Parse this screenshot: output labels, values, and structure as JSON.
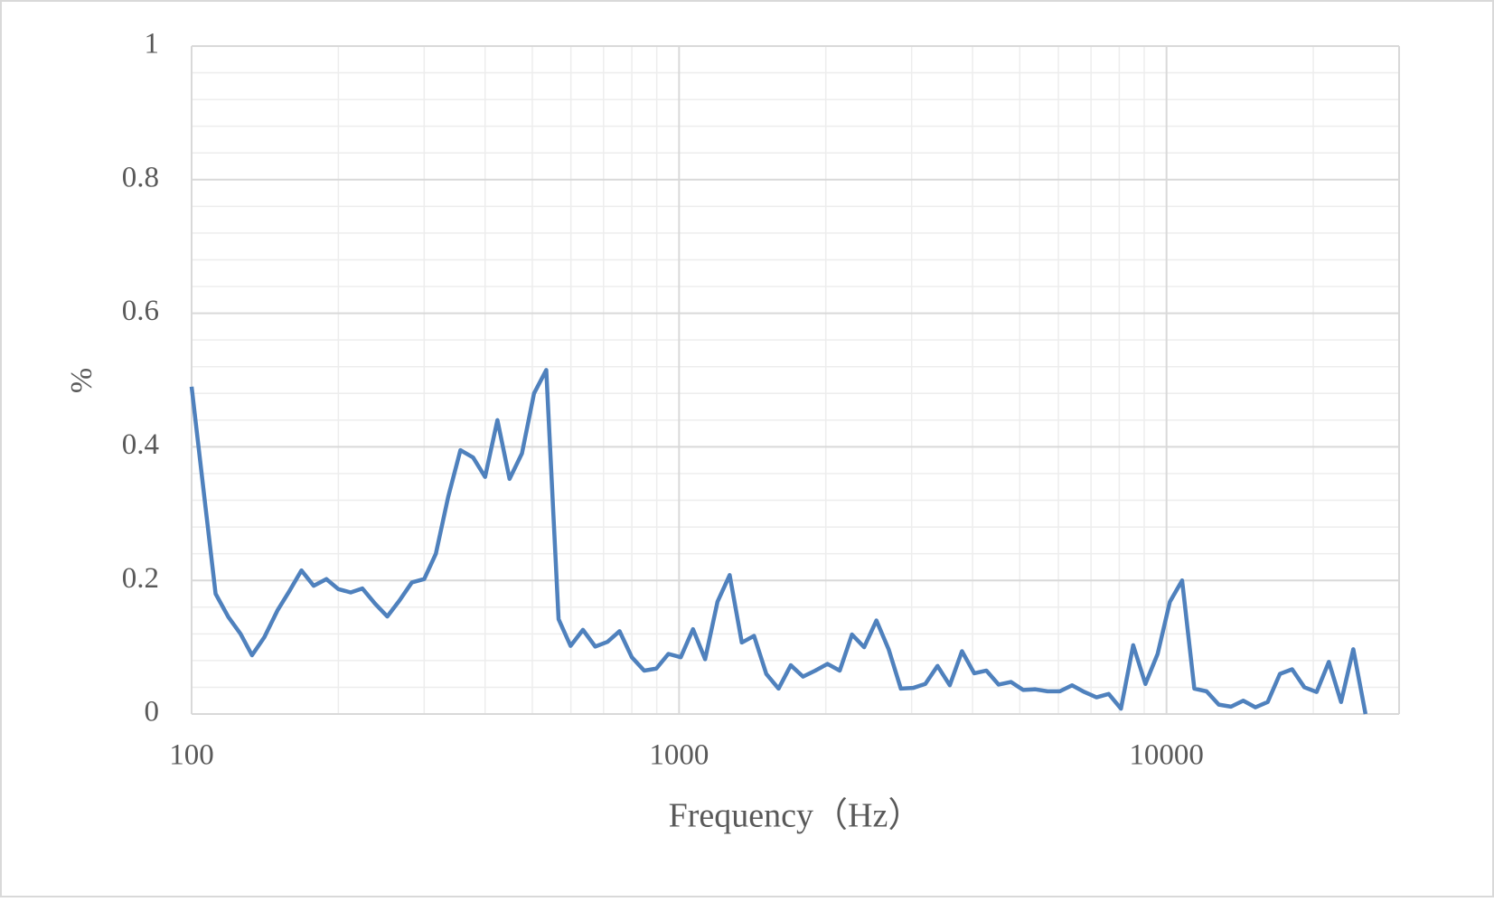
{
  "chart_data": {
    "type": "line",
    "x_label": "Frequency（Hz）",
    "y_label": "%",
    "x_log": true,
    "grid": true,
    "minor_grid": true,
    "xlim": [
      100,
      30000
    ],
    "xticks": [
      100,
      1000,
      10000
    ],
    "ylim": [
      0,
      1
    ],
    "yticks": [
      0,
      0.2,
      0.4,
      0.6,
      0.8,
      1
    ],
    "x": [
      100,
      106,
      112,
      119,
      126,
      133,
      141,
      150,
      159,
      168,
      178,
      189,
      200,
      212,
      224,
      238,
      252,
      267,
      283,
      300,
      317,
      336,
      356,
      378,
      400,
      424,
      449,
      476,
      504,
      534,
      566,
      599,
      635,
      673,
      713,
      755,
      800,
      848,
      898,
      951,
      1008,
      1068,
      1131,
      1199,
      1270,
      1345,
      1425,
      1510,
      1600,
      1695,
      1796,
      1903,
      2016,
      2136,
      2263,
      2397,
      2540,
      2691,
      2851,
      3020,
      3200,
      3390,
      3592,
      3805,
      4032,
      4271,
      4525,
      4795,
      5080,
      5382,
      5702,
      6041,
      6400,
      6781,
      7184,
      7611,
      8063,
      8543,
      9051,
      9589,
      10159,
      10764,
      11404,
      12082,
      12800,
      13561,
      14368,
      15222,
      16127,
      17086,
      18102,
      19178,
      20319,
      21527,
      22807,
      24163,
      25600
    ],
    "series": [
      {
        "color": "#4f81bd",
        "values": [
          0.49,
          0.33,
          0.18,
          0.145,
          0.12,
          0.088,
          0.115,
          0.155,
          0.185,
          0.215,
          0.192,
          0.202,
          0.187,
          0.182,
          0.188,
          0.165,
          0.146,
          0.17,
          0.197,
          0.202,
          0.24,
          0.325,
          0.395,
          0.384,
          0.355,
          0.44,
          0.352,
          0.39,
          0.48,
          0.515,
          0.142,
          0.102,
          0.126,
          0.101,
          0.108,
          0.124,
          0.085,
          0.065,
          0.068,
          0.09,
          0.085,
          0.127,
          0.082,
          0.168,
          0.208,
          0.107,
          0.117,
          0.06,
          0.038,
          0.073,
          0.056,
          0.065,
          0.075,
          0.065,
          0.119,
          0.1,
          0.14,
          0.097,
          0.038,
          0.039,
          0.045,
          0.072,
          0.043,
          0.094,
          0.061,
          0.065,
          0.044,
          0.048,
          0.036,
          0.037,
          0.034,
          0.034,
          0.043,
          0.033,
          0.025,
          0.03,
          0.008,
          0.103,
          0.045,
          0.09,
          0.168,
          0.2,
          0.038,
          0.034,
          0.014,
          0.011,
          0.02,
          0.01,
          0.018,
          0.06,
          0.067,
          0.04,
          0.033,
          0.078,
          0.018,
          0.097,
          0.0
        ]
      }
    ]
  }
}
